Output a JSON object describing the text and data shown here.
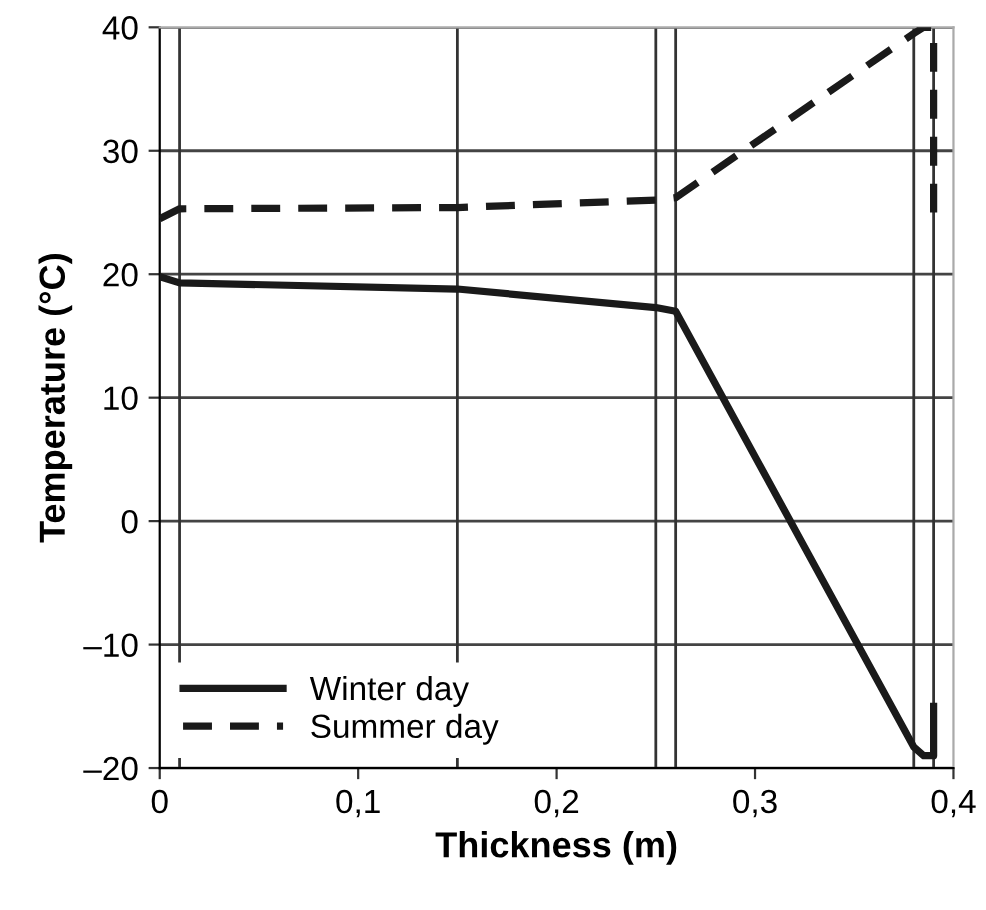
{
  "chart_data": {
    "type": "line",
    "xlabel": "Thickness (m)",
    "ylabel": "Temperature (°C)",
    "xlim": [
      0,
      0.4
    ],
    "xticks": [
      {
        "value": 0,
        "label": "0"
      },
      {
        "value": 0.1,
        "label": "0,1"
      },
      {
        "value": 0.2,
        "label": "0,2"
      },
      {
        "value": 0.3,
        "label": "0,3"
      },
      {
        "value": 0.4,
        "label": "0,4"
      }
    ],
    "ylim": [
      -20,
      40
    ],
    "yticks": [
      {
        "value": -20,
        "label": "–20"
      },
      {
        "value": -10,
        "label": "–10"
      },
      0,
      10,
      20,
      30,
      40
    ],
    "grid": "y",
    "legend": "bottom left",
    "marker": "none",
    "ref_lines": [
      {
        "axis": "x",
        "value": 0.01,
        "color": "#333333"
      },
      {
        "axis": "x",
        "value": 0.15,
        "color": "#333333"
      },
      {
        "axis": "x",
        "value": 0.25,
        "color": "#333333"
      },
      {
        "axis": "x",
        "value": 0.26,
        "color": "#333333"
      },
      {
        "axis": "x",
        "value": 0.38,
        "color": "#333333"
      },
      {
        "axis": "x",
        "value": 0.39,
        "color": "#333333"
      }
    ],
    "series": [
      {
        "name": "Winter day",
        "color": "#1a1a1a",
        "line_style": "solid",
        "x": [
          0,
          0.01,
          0.15,
          0.25,
          0.26,
          0.38,
          0.385,
          0.39,
          0.39
        ],
        "values": [
          19.8,
          19.3,
          18.8,
          17.3,
          17,
          -18.3,
          -19,
          -19,
          -15
        ]
      },
      {
        "name": "Summer day",
        "color": "#1a1a1a",
        "line_style": "dashed",
        "x": [
          0,
          0.01,
          0.15,
          0.25,
          0.26,
          0.38,
          0.385,
          0.39,
          0.39
        ],
        "values": [
          24.5,
          25.3,
          25.4,
          26,
          26.2,
          39.5,
          40,
          40,
          25
        ]
      }
    ]
  }
}
